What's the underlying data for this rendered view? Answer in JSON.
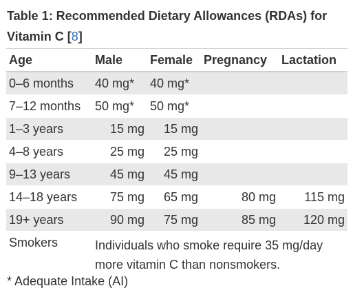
{
  "caption": {
    "text": "Table 1: Recommended Dietary Allowances (RDAs) for Vitamin C [",
    "ref": "8",
    "close": "]"
  },
  "headers": [
    "Age",
    "Male",
    "Female",
    "Pregnancy",
    "Lactation"
  ],
  "rows": [
    {
      "age": "0–6 months",
      "male": "40 mg*",
      "female": "40 mg*",
      "pregnancy": "",
      "lactation": ""
    },
    {
      "age": "7–12 months",
      "male": "50 mg*",
      "female": "50 mg*",
      "pregnancy": "",
      "lactation": ""
    },
    {
      "age": "1–3 years",
      "male": "15 mg",
      "female": "15 mg",
      "pregnancy": "",
      "lactation": ""
    },
    {
      "age": "4–8 years",
      "male": "25 mg",
      "female": "25 mg",
      "pregnancy": "",
      "lactation": ""
    },
    {
      "age": "9–13 years",
      "male": "45 mg",
      "female": "45 mg",
      "pregnancy": "",
      "lactation": ""
    },
    {
      "age": "14–18 years",
      "male": "75 mg",
      "female": "65 mg",
      "pregnancy": "80 mg",
      "lactation": "115 mg"
    },
    {
      "age": "19+ years",
      "male": "90 mg",
      "female": "75 mg",
      "pregnancy": "85 mg",
      "lactation": "120 mg"
    }
  ],
  "smokers": {
    "label": "Smokers",
    "note": "Individuals who smoke require 35 mg/day more vitamin C than nonsmokers."
  },
  "footnote": "* Adequate Intake (AI)",
  "colors": {
    "text": "#333333",
    "shade": "#e8e8e8",
    "link": "#2a6db5"
  }
}
